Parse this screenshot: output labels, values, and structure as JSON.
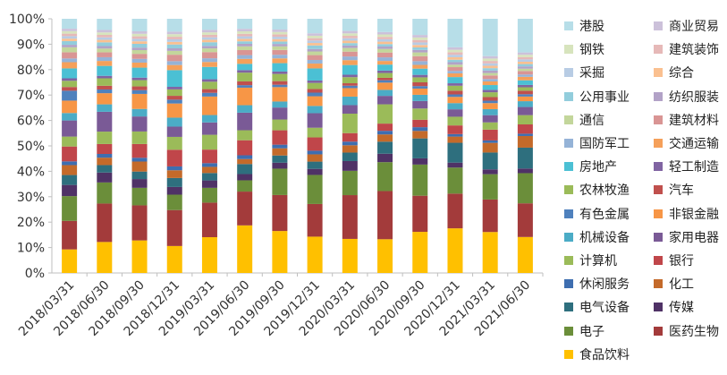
{
  "chart_data": {
    "type": "bar",
    "stacked": true,
    "normalized": true,
    "title": "",
    "xlabel": "",
    "ylabel": "",
    "ylim": [
      0,
      100
    ],
    "yticks": [
      "0%",
      "10%",
      "20%",
      "30%",
      "40%",
      "50%",
      "60%",
      "70%",
      "80%",
      "90%",
      "100%"
    ],
    "categories": [
      "2018/03/31",
      "2018/06/30",
      "2018/09/30",
      "2018/12/31",
      "2019/03/31",
      "2019/06/30",
      "2019/09/30",
      "2019/12/31",
      "2020/03/31",
      "2020/06/30",
      "2020/09/30",
      "2020/12/31",
      "2021/03/31",
      "2021/06/30"
    ],
    "legend_position": "right",
    "legend_order": [
      "港股",
      "商业贸易",
      "钢铁",
      "建筑装饰",
      "采掘",
      "综合",
      "公用事业",
      "纺织服装",
      "通信",
      "建筑材料",
      "国防军工",
      "交通运输",
      "房地产",
      "轻工制造",
      "农林牧渔",
      "汽车",
      "有色金属",
      "非银金融",
      "机械设备",
      "家用电器",
      "计算机",
      "银行",
      "休闲服务",
      "化工",
      "电气设备",
      "传媒",
      "电子",
      "医药生物",
      "食品饮料"
    ],
    "series": [
      {
        "name": "食品饮料",
        "color": "#ffc000",
        "values": [
          9.5,
          12.5,
          13.0,
          10.5,
          14.5,
          19.0,
          17.5,
          15.0,
          14.0,
          14.0,
          16.5,
          18.0,
          17.0,
          15.5
        ]
      },
      {
        "name": "医药生物",
        "color": "#a33b3b",
        "values": [
          11.5,
          15.5,
          14.0,
          14.0,
          14.0,
          13.5,
          15.0,
          13.5,
          18.0,
          20.0,
          14.5,
          14.0,
          13.5,
          14.5
        ]
      },
      {
        "name": "电子",
        "color": "#6b8e3a",
        "values": [
          10.0,
          8.5,
          7.0,
          6.0,
          6.0,
          4.5,
          11.0,
          12.0,
          10.0,
          12.0,
          12.5,
          10.5,
          10.5,
          13.0
        ]
      },
      {
        "name": "传媒",
        "color": "#4f3266",
        "values": [
          4.5,
          4.0,
          3.5,
          3.0,
          3.0,
          2.5,
          2.5,
          2.5,
          4.0,
          3.5,
          2.5,
          2.0,
          2.0,
          2.0
        ]
      },
      {
        "name": "电气设备",
        "color": "#2e6f7e",
        "values": [
          4.0,
          3.0,
          3.0,
          3.5,
          3.0,
          4.0,
          3.0,
          3.0,
          3.5,
          5.0,
          8.0,
          8.0,
          7.0,
          9.0
        ]
      },
      {
        "name": "化工",
        "color": "#c46a2a",
        "values": [
          4.0,
          3.0,
          4.0,
          3.0,
          2.5,
          2.0,
          3.0,
          3.0,
          3.0,
          3.0,
          3.0,
          2.5,
          4.0,
          5.0
        ]
      },
      {
        "name": "休闲服务",
        "color": "#3e6eb0",
        "values": [
          1.5,
          1.5,
          1.5,
          1.5,
          1.5,
          1.5,
          1.5,
          1.5,
          1.5,
          1.5,
          1.5,
          1.0,
          1.0,
          1.0
        ]
      },
      {
        "name": "银行",
        "color": "#c0464a",
        "values": [
          6.0,
          4.0,
          5.5,
          6.5,
          5.5,
          6.0,
          6.0,
          5.5,
          3.5,
          3.0,
          3.0,
          3.5,
          4.5,
          4.0
        ]
      },
      {
        "name": "计算机",
        "color": "#9bbb59",
        "values": [
          4.0,
          5.0,
          5.0,
          5.0,
          6.0,
          4.0,
          4.5,
          4.0,
          8.0,
          8.0,
          4.5,
          3.5,
          3.0,
          4.0
        ]
      },
      {
        "name": "家用电器",
        "color": "#7a5a96",
        "values": [
          6.5,
          8.0,
          6.0,
          4.0,
          5.0,
          7.0,
          5.0,
          6.0,
          3.5,
          3.5,
          3.0,
          3.0,
          3.0,
          3.5
        ]
      },
      {
        "name": "机械设备",
        "color": "#4bacc6",
        "values": [
          3.0,
          3.0,
          3.0,
          3.5,
          3.0,
          3.0,
          2.5,
          3.0,
          3.5,
          2.5,
          2.5,
          2.5,
          2.5,
          2.5
        ]
      },
      {
        "name": "非银金融",
        "color": "#f79646",
        "values": [
          5.0,
          4.5,
          6.0,
          5.5,
          7.5,
          7.0,
          6.0,
          4.0,
          3.5,
          3.0,
          2.5,
          2.5,
          2.5,
          2.0
        ]
      },
      {
        "name": "有色金属",
        "color": "#4f81bd",
        "values": [
          4.0,
          1.5,
          1.5,
          1.5,
          1.5,
          1.0,
          1.0,
          1.5,
          1.0,
          1.0,
          1.0,
          1.0,
          1.0,
          1.0
        ]
      },
      {
        "name": "汽车",
        "color": "#c0504d",
        "values": [
          1.5,
          1.5,
          1.5,
          1.5,
          1.5,
          1.5,
          1.5,
          1.5,
          1.0,
          1.0,
          1.5,
          1.5,
          1.5,
          1.5
        ]
      },
      {
        "name": "农林牧渔",
        "color": "#9bbb59",
        "values": [
          2.5,
          3.0,
          2.5,
          2.5,
          3.0,
          3.5,
          3.0,
          2.5,
          2.5,
          2.0,
          2.0,
          2.0,
          2.0,
          1.5
        ]
      },
      {
        "name": "轻工制造",
        "color": "#8064a2",
        "values": [
          1.0,
          1.0,
          1.0,
          1.0,
          1.0,
          1.0,
          1.0,
          1.0,
          1.0,
          1.0,
          1.0,
          1.0,
          1.0,
          1.0
        ]
      },
      {
        "name": "房地产",
        "color": "#4bc0d4",
        "values": [
          4.0,
          4.0,
          4.0,
          6.5,
          5.0,
          2.5,
          3.5,
          5.0,
          4.0,
          2.5,
          2.5,
          2.5,
          2.0,
          2.0
        ]
      },
      {
        "name": "交通运输",
        "color": "#f5a05a",
        "values": [
          2.5,
          2.0,
          2.0,
          2.0,
          2.0,
          2.0,
          2.0,
          2.0,
          2.0,
          1.5,
          1.5,
          1.5,
          1.5,
          1.5
        ]
      },
      {
        "name": "国防军工",
        "color": "#95b3d7",
        "values": [
          1.5,
          1.5,
          1.5,
          1.5,
          1.5,
          1.5,
          1.5,
          1.5,
          1.5,
          1.5,
          1.5,
          1.0,
          1.0,
          1.0
        ]
      },
      {
        "name": "建筑材料",
        "color": "#d99594",
        "values": [
          2.5,
          2.0,
          2.0,
          2.5,
          2.5,
          2.0,
          2.0,
          2.0,
          2.0,
          2.0,
          2.0,
          1.5,
          1.5,
          1.5
        ]
      },
      {
        "name": "通信",
        "color": "#c3d69b",
        "values": [
          2.0,
          1.5,
          1.5,
          1.5,
          1.5,
          1.5,
          1.5,
          1.5,
          1.5,
          1.5,
          1.5,
          1.0,
          1.0,
          1.0
        ]
      },
      {
        "name": "纺织服装",
        "color": "#b2a2c7",
        "values": [
          1.0,
          1.0,
          1.0,
          1.0,
          1.0,
          1.0,
          1.0,
          1.0,
          1.0,
          1.0,
          1.0,
          1.0,
          1.0,
          1.0
        ]
      },
      {
        "name": "公用事业",
        "color": "#92cddc",
        "values": [
          1.5,
          1.5,
          1.5,
          1.5,
          1.5,
          1.0,
          1.0,
          1.5,
          1.0,
          1.0,
          1.0,
          1.0,
          1.0,
          1.0
        ]
      },
      {
        "name": "综合",
        "color": "#fac090",
        "values": [
          1.0,
          1.0,
          1.0,
          1.0,
          1.0,
          1.0,
          1.0,
          1.0,
          1.0,
          1.0,
          1.0,
          1.0,
          1.0,
          1.0
        ]
      },
      {
        "name": "采掘",
        "color": "#b8cce4",
        "values": [
          1.0,
          1.0,
          1.0,
          1.0,
          1.0,
          1.0,
          1.0,
          1.0,
          1.0,
          1.0,
          1.0,
          1.0,
          1.0,
          1.0
        ]
      },
      {
        "name": "建筑装饰",
        "color": "#e6b9b8",
        "values": [
          1.0,
          1.0,
          1.0,
          1.0,
          1.0,
          1.0,
          1.0,
          1.0,
          1.0,
          1.0,
          1.0,
          1.0,
          1.0,
          1.0
        ]
      },
      {
        "name": "钢铁",
        "color": "#d7e4bd",
        "values": [
          1.0,
          1.0,
          1.0,
          1.0,
          1.0,
          1.0,
          1.0,
          1.0,
          1.0,
          1.0,
          1.0,
          1.0,
          1.0,
          1.0
        ]
      },
      {
        "name": "商业贸易",
        "color": "#ccc1da",
        "values": [
          1.0,
          1.0,
          1.0,
          1.0,
          1.0,
          1.0,
          1.0,
          1.0,
          1.0,
          1.0,
          1.0,
          1.0,
          1.0,
          1.0
        ]
      },
      {
        "name": "港股",
        "color": "#b7dee8",
        "values": [
          4.0,
          4.5,
          5.0,
          5.0,
          4.5,
          4.0,
          4.5,
          6.0,
          5.0,
          5.5,
          6.5,
          11.5,
          15.5,
          14.5
        ]
      }
    ]
  }
}
